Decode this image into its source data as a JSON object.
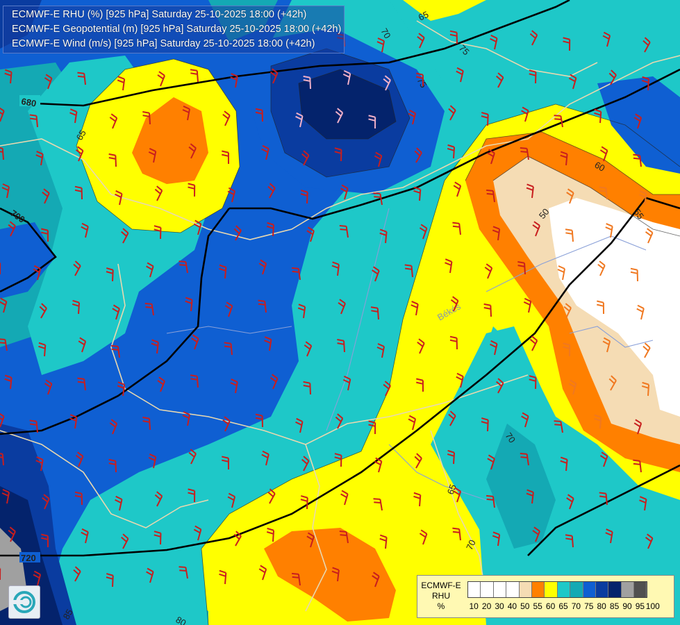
{
  "title_lines": [
    "ECMWF-E RHU (%) [925 hPa] Saturday 25-10-2025 18:00 (+42h)",
    "ECMWF-E Geopotential (m) [925 hPa] Saturday 25-10-2025 18:00 (+42h)",
    "ECMWF-E Wind (m/s) [925 hPa] Saturday 25-10-2025 18:00 (+42h)"
  ],
  "legend": {
    "title": [
      "ECMWF-E",
      "RHU",
      "%"
    ],
    "ticks": [
      "10",
      "20",
      "30",
      "40",
      "50",
      "55",
      "60",
      "65",
      "70",
      "75",
      "80",
      "85",
      "90",
      "95",
      "100"
    ],
    "colors": [
      "#ffffff",
      "#ffffff",
      "#ffffff",
      "#ffffff",
      "#f5dcb4",
      "#ff8000",
      "#ffff00",
      "#1ec8c8",
      "#14a9b4",
      "#0f5fd2",
      "#0a3ca0",
      "#04236c",
      "#a0a0a0",
      "#505050"
    ]
  },
  "colors": {
    "rhu_white": "#ffffff",
    "rhu_50": "#f5dcb4",
    "rhu_55": "#ff8000",
    "rhu_60": "#ffff00",
    "rhu_65": "#1ec8c8",
    "rhu_70": "#14a9b4",
    "rhu_75": "#0f5fd2",
    "rhu_80": "#0a3ca0",
    "rhu_85": "#04236c",
    "rhu_90": "#a0a0a0",
    "geopotential_line": "#000000",
    "border_line": "#e8d8b0",
    "river_line": "#8aa0d8",
    "wind_barb": "#c81e1e"
  },
  "rhu_contour_labels": [
    "65",
    "70",
    "75",
    "75",
    "65",
    "60",
    "50",
    "55",
    "70",
    "65",
    "70",
    "80",
    "85"
  ],
  "geopotential_labels": [
    "680",
    "700",
    "720"
  ],
  "place_labels": [
    "Békés"
  ],
  "logo_icon": "ecmwf-logo-icon"
}
